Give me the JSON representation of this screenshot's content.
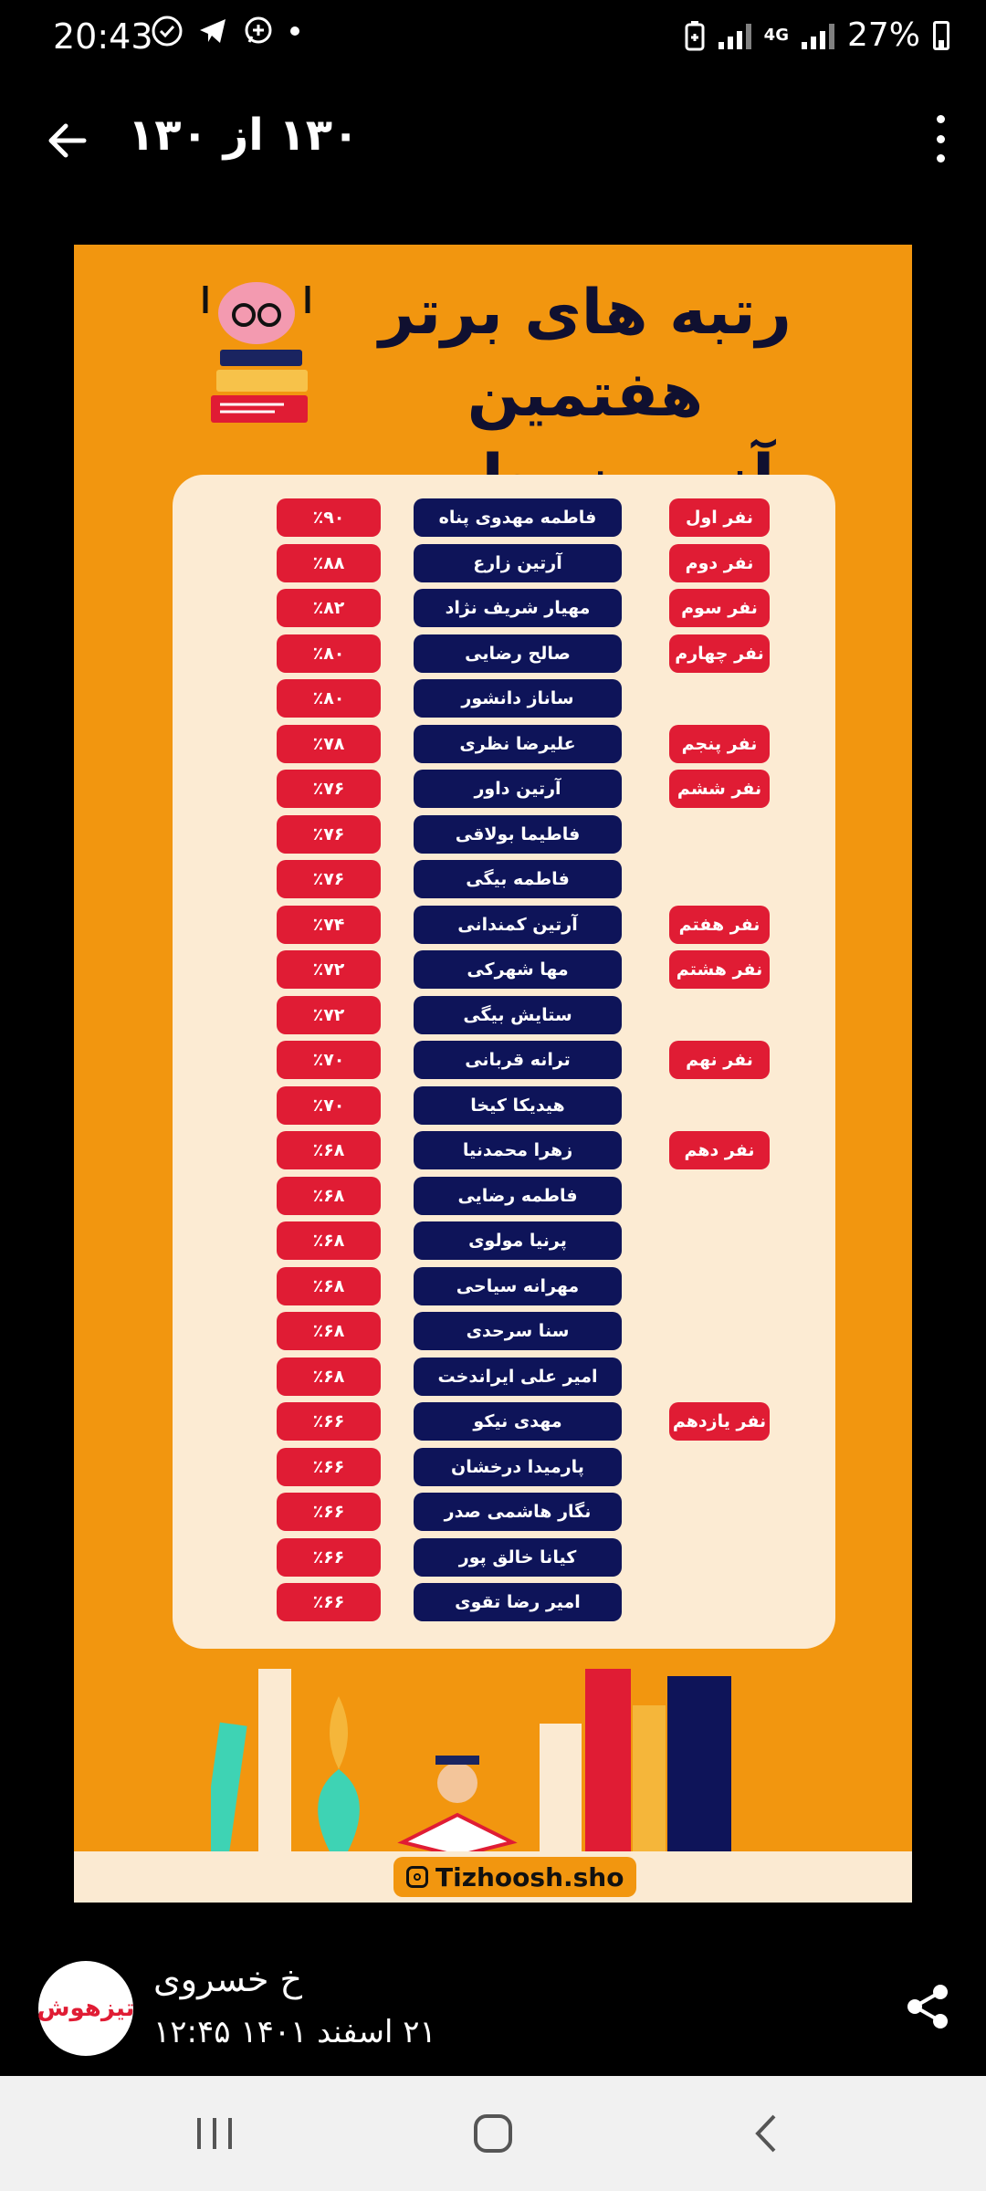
{
  "status_bar": {
    "time": "20:43",
    "network_label": "4G",
    "battery_text": "27%",
    "icons": [
      "check-circle-icon",
      "telegram-icon",
      "whatsapp-icon",
      "dot-icon",
      "battery-saver-icon",
      "signal-icon",
      "signal-icon",
      "battery-icon"
    ]
  },
  "app_bar": {
    "title": "۱۳۰ از ۱۳۰"
  },
  "poster": {
    "title_line1": "رتبه های برتر هفتمین",
    "title_line2": "آزمون جامع هوش",
    "instagram_handle": "Tizhoosh.sho",
    "rows": [
      {
        "percent": "٪۹۰",
        "name": "فاطمه مهدوی پناه",
        "rank": "نفر اول"
      },
      {
        "percent": "٪۸۸",
        "name": "آرتین زارع",
        "rank": "نفر دوم"
      },
      {
        "percent": "٪۸۲",
        "name": "مهیار شریف نژاد",
        "rank": "نفر سوم"
      },
      {
        "percent": "٪۸۰",
        "name": "صالح رضایی",
        "rank": "نفر چهارم"
      },
      {
        "percent": "٪۸۰",
        "name": "ساناز دانشور",
        "rank": ""
      },
      {
        "percent": "٪۷۸",
        "name": "علیرضا نظری",
        "rank": "نفر پنجم"
      },
      {
        "percent": "٪۷۶",
        "name": "آرتین داور",
        "rank": "نفر ششم"
      },
      {
        "percent": "٪۷۶",
        "name": "فاطیما بولاقی",
        "rank": ""
      },
      {
        "percent": "٪۷۶",
        "name": "فاطمه بیگی",
        "rank": ""
      },
      {
        "percent": "٪۷۴",
        "name": "آرتین کمندانی",
        "rank": "نفر هفتم"
      },
      {
        "percent": "٪۷۲",
        "name": "مها شهرکی",
        "rank": "نفر هشتم"
      },
      {
        "percent": "٪۷۲",
        "name": "ستایش بیگی",
        "rank": ""
      },
      {
        "percent": "٪۷۰",
        "name": "ترانه قربانی",
        "rank": "نفر نهم"
      },
      {
        "percent": "٪۷۰",
        "name": "هیدیکا کیخا",
        "rank": ""
      },
      {
        "percent": "٪۶۸",
        "name": "زهرا محمدنیا",
        "rank": "نفر دهم"
      },
      {
        "percent": "٪۶۸",
        "name": "فاطمه رضایی",
        "rank": ""
      },
      {
        "percent": "٪۶۸",
        "name": "پرنیا مولوی",
        "rank": ""
      },
      {
        "percent": "٪۶۸",
        "name": "مهرانه سیاحی",
        "rank": ""
      },
      {
        "percent": "٪۶۸",
        "name": "سنا سرحدی",
        "rank": ""
      },
      {
        "percent": "٪۶۸",
        "name": "امیر علی ایراندخت",
        "rank": ""
      },
      {
        "percent": "٪۶۶",
        "name": "مهدی نیکو",
        "rank": "نفر یازدهم"
      },
      {
        "percent": "٪۶۶",
        "name": "پارمیدا درخشان",
        "rank": ""
      },
      {
        "percent": "٪۶۶",
        "name": "نگار هاشمی صدر",
        "rank": ""
      },
      {
        "percent": "٪۶۶",
        "name": "کیانا خالق پور",
        "rank": ""
      },
      {
        "percent": "٪۶۶",
        "name": "امیر رضا تقوی",
        "rank": ""
      }
    ]
  },
  "footer": {
    "avatar_text": "تیزهوش",
    "author": "خ خسروی",
    "date": "۲۱ اسفند ۱۴۰۱ ۱۲:۴۵"
  },
  "colors": {
    "poster_bg": "#f2960f",
    "panel_bg": "#fcebd3",
    "red_pill": "#e01c34",
    "navy_pill": "#0e1459"
  }
}
